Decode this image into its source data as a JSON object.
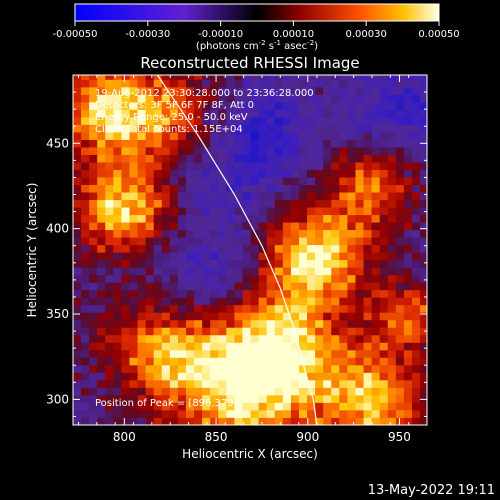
{
  "chart_data": {
    "type": "heatmap",
    "title": "Reconstructed RHESSI Image",
    "xlabel": "Heliocentric X (arcsec)",
    "ylabel": "Heliocentric Y (arcsec)",
    "xlim": [
      772,
      965
    ],
    "ylim": [
      285,
      490
    ],
    "x_ticks": [
      800,
      850,
      900,
      950
    ],
    "y_ticks": [
      300,
      350,
      400,
      450
    ],
    "colorbar": {
      "label_parts": [
        "(photons cm",
        "-2",
        " s",
        "-1",
        " asec",
        "-2",
        ")"
      ],
      "range": [
        -0.0005,
        0.0005
      ],
      "ticks": [
        "-0.00050",
        "-0.00030",
        "-0.00010",
        "0.00010",
        "0.00030",
        "0.00050"
      ]
    },
    "annotations": [
      "19-Aug-2012 23:30:28.000 to 23:36:28.000",
      "Detectors: 3F 5F 6F 7F 8F, Att 0",
      "Energy Range: 25.0 - 50.0 keV",
      "Clean     Total counts: 1.15E+04"
    ],
    "peak_label": "Position of Peak = [896,379]",
    "limb_points": [
      [
        818,
        490
      ],
      [
        840,
        455
      ],
      [
        860,
        420
      ],
      [
        875,
        390
      ],
      [
        885,
        365
      ],
      [
        893,
        340
      ],
      [
        899,
        315
      ],
      [
        903,
        300
      ],
      [
        905,
        285
      ]
    ],
    "hot_regions": [
      {
        "x": 790,
        "y": 470,
        "level": 0.85,
        "spread": 22
      },
      {
        "x": 800,
        "y": 410,
        "level": 0.95,
        "spread": 18
      },
      {
        "x": 830,
        "y": 460,
        "level": 0.7,
        "spread": 22
      },
      {
        "x": 905,
        "y": 385,
        "level": 1.0,
        "spread": 20
      },
      {
        "x": 885,
        "y": 335,
        "level": 0.8,
        "spread": 22
      },
      {
        "x": 865,
        "y": 305,
        "level": 0.95,
        "spread": 26
      },
      {
        "x": 820,
        "y": 330,
        "level": 0.75,
        "spread": 22
      },
      {
        "x": 935,
        "y": 425,
        "level": 0.7,
        "spread": 16
      },
      {
        "x": 935,
        "y": 300,
        "level": 0.85,
        "spread": 22
      },
      {
        "x": 955,
        "y": 350,
        "level": 0.6,
        "spread": 14
      }
    ],
    "cold_regions": [
      {
        "x": 850,
        "y": 440,
        "level": 0.55,
        "spread": 24
      },
      {
        "x": 880,
        "y": 460,
        "level": 0.45,
        "spread": 18
      },
      {
        "x": 950,
        "y": 470,
        "level": 0.5,
        "spread": 18
      },
      {
        "x": 845,
        "y": 370,
        "level": 0.4,
        "spread": 20
      }
    ]
  },
  "footer": {
    "timestamp": "13-May-2022 19:11"
  }
}
